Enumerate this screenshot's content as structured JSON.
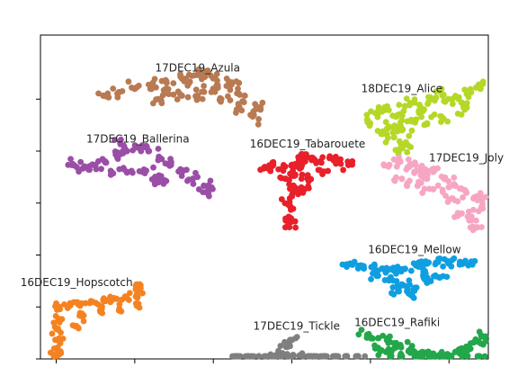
{
  "chart_data": {
    "type": "scatter",
    "title": "",
    "xlabel": "",
    "ylabel": "",
    "xlim": [
      -1,
      27.5
    ],
    "ylim": [
      0.0,
      9.35
    ],
    "grid": false,
    "legend": "none",
    "xticks": [
      0,
      5,
      10,
      15,
      20,
      25
    ],
    "yticks": [
      0,
      1.5,
      3,
      4.5,
      6,
      7.5
    ],
    "series": [
      {
        "name": "17DEC19_Azula",
        "color": "#b87a53",
        "label": {
          "x": 9,
          "y": 8.3
        },
        "points": [
          [
            3,
            7.6
          ],
          [
            4,
            7.7
          ],
          [
            5,
            7.8
          ],
          [
            6,
            7.9
          ],
          [
            7,
            8.0
          ],
          [
            8,
            8.1
          ],
          [
            9,
            8.2
          ],
          [
            10,
            8.1
          ],
          [
            11,
            7.9
          ],
          [
            12,
            7.6
          ],
          [
            13,
            7.2
          ],
          [
            6.5,
            7.5
          ],
          [
            8,
            7.6
          ],
          [
            9,
            7.6
          ],
          [
            10.5,
            7.5
          ],
          [
            11.5,
            7.2
          ],
          [
            12.5,
            7.0
          ],
          [
            7,
            7.8
          ],
          [
            8.5,
            8.0
          ],
          [
            10,
            7.8
          ],
          [
            9.5,
            8.3
          ],
          [
            11,
            8.0
          ]
        ],
        "spread": [
          0.55,
          0.18
        ]
      },
      {
        "name": "18DEC19_Alice",
        "color": "#b5d827",
        "label": {
          "x": 22,
          "y": 7.7
        },
        "points": [
          [
            19.8,
            6.9
          ],
          [
            20.5,
            7.1
          ],
          [
            21,
            7.2
          ],
          [
            21.6,
            7.0
          ],
          [
            22.2,
            7.3
          ],
          [
            22.8,
            7.4
          ],
          [
            23.4,
            7.2
          ],
          [
            24,
            7.5
          ],
          [
            24.6,
            7.6
          ],
          [
            25.2,
            7.5
          ],
          [
            25.8,
            7.4
          ],
          [
            26.4,
            7.7
          ],
          [
            27,
            7.8
          ],
          [
            21.2,
            6.7
          ],
          [
            22,
            6.6
          ],
          [
            22.6,
            6.9
          ],
          [
            23.6,
            6.8
          ],
          [
            20.8,
            6.5
          ],
          [
            21.5,
            6.4
          ],
          [
            22.3,
            6.2
          ],
          [
            21.8,
            6.0
          ],
          [
            24.5,
            7.0
          ],
          [
            26,
            7.2
          ]
        ],
        "spread": [
          0.6,
          0.2
        ]
      },
      {
        "name": "17DEC19_Ballerina",
        "color": "#9a4ea6",
        "label": {
          "x": 5.2,
          "y": 6.25
        },
        "points": [
          [
            1,
            5.6
          ],
          [
            1.7,
            5.5
          ],
          [
            2.4,
            5.6
          ],
          [
            3.1,
            5.7
          ],
          [
            3.8,
            5.9
          ],
          [
            4.5,
            6.0
          ],
          [
            5.2,
            6.1
          ],
          [
            5.9,
            6.0
          ],
          [
            6.6,
            5.8
          ],
          [
            7.3,
            5.6
          ],
          [
            8,
            5.4
          ],
          [
            8.7,
            5.2
          ],
          [
            9.4,
            5.0
          ],
          [
            9.6,
            4.8
          ],
          [
            3.5,
            5.4
          ],
          [
            4.5,
            5.4
          ],
          [
            5.5,
            5.4
          ],
          [
            6.5,
            5.2
          ],
          [
            4.1,
            6.2
          ],
          [
            6.5,
            5.1
          ]
        ],
        "spread": [
          0.55,
          0.16
        ]
      },
      {
        "name": "16DEC19_Tabarouete",
        "color": "#e8202a",
        "label": {
          "x": 16,
          "y": 6.1
        },
        "points": [
          [
            13.2,
            5.5
          ],
          [
            13.8,
            5.6
          ],
          [
            14.4,
            5.5
          ],
          [
            15,
            5.6
          ],
          [
            15.6,
            5.8
          ],
          [
            16.2,
            5.8
          ],
          [
            16.8,
            5.7
          ],
          [
            17.4,
            5.8
          ],
          [
            18,
            5.7
          ],
          [
            18.6,
            5.6
          ],
          [
            15.2,
            5.3
          ],
          [
            15.1,
            5.0
          ],
          [
            15,
            4.7
          ],
          [
            14.9,
            4.4
          ],
          [
            14.8,
            4.1
          ],
          [
            14.8,
            3.9
          ],
          [
            16,
            5.2
          ],
          [
            15.8,
            4.9
          ],
          [
            17,
            5.4
          ],
          [
            14.6,
            5.2
          ],
          [
            15.5,
            5.5
          ]
        ],
        "spread": [
          0.55,
          0.15
        ]
      },
      {
        "name": "17DEC19_Joly",
        "color": "#f6a6c3",
        "label": {
          "x": 26.1,
          "y": 5.7
        },
        "points": [
          [
            21.2,
            5.6
          ],
          [
            21.9,
            5.7
          ],
          [
            22.6,
            5.6
          ],
          [
            23.3,
            5.5
          ],
          [
            24,
            5.4
          ],
          [
            24.7,
            5.2
          ],
          [
            25.4,
            5.0
          ],
          [
            26.1,
            4.8
          ],
          [
            26.8,
            4.6
          ],
          [
            27.1,
            4.4
          ],
          [
            22,
            5.2
          ],
          [
            23,
            5.0
          ],
          [
            24,
            4.9
          ],
          [
            25,
            4.6
          ],
          [
            25.8,
            4.2
          ],
          [
            26.4,
            4.0
          ],
          [
            26.8,
            3.8
          ],
          [
            27,
            4.7
          ],
          [
            22.8,
            5.4
          ],
          [
            23.6,
            5.2
          ]
        ],
        "spread": [
          0.55,
          0.16
        ]
      },
      {
        "name": "16DEC19_Mellow",
        "color": "#0f9fe0",
        "label": {
          "x": 22.8,
          "y": 3.05
        },
        "points": [
          [
            18.7,
            2.75
          ],
          [
            19.4,
            2.7
          ],
          [
            20.1,
            2.65
          ],
          [
            20.8,
            2.6
          ],
          [
            21.5,
            2.55
          ],
          [
            22.2,
            2.6
          ],
          [
            22.9,
            2.7
          ],
          [
            23.6,
            2.75
          ],
          [
            24.3,
            2.8
          ],
          [
            25,
            2.75
          ],
          [
            25.7,
            2.8
          ],
          [
            26.4,
            2.75
          ],
          [
            21.2,
            2.3
          ],
          [
            22,
            2.15
          ],
          [
            22.8,
            2.05
          ],
          [
            23.6,
            2.2
          ],
          [
            24.4,
            2.35
          ],
          [
            21.8,
            1.95
          ],
          [
            22.6,
            1.85
          ],
          [
            23.4,
            2.45
          ],
          [
            20.4,
            2.4
          ]
        ],
        "spread": [
          0.55,
          0.14
        ]
      },
      {
        "name": "16DEC19_Hopscotch",
        "color": "#f58220",
        "label": {
          "x": 1.3,
          "y": 2.1
        },
        "points": [
          [
            0.2,
            1.5
          ],
          [
            0.9,
            1.55
          ],
          [
            1.6,
            1.6
          ],
          [
            2.3,
            1.65
          ],
          [
            3,
            1.7
          ],
          [
            3.7,
            1.75
          ],
          [
            4.4,
            1.8
          ],
          [
            5.1,
            1.8
          ],
          [
            5.2,
            1.55
          ],
          [
            5.3,
            2.0
          ],
          [
            5.3,
            2.15
          ],
          [
            0.2,
            1.15
          ],
          [
            0.1,
            0.85
          ],
          [
            0.05,
            0.55
          ],
          [
            0.0,
            0.3
          ],
          [
            -0.05,
            0.1
          ],
          [
            1.5,
            1.25
          ],
          [
            2.8,
            1.4
          ],
          [
            4,
            1.4
          ],
          [
            1.2,
            0.95
          ]
        ],
        "spread": [
          0.4,
          0.12
        ]
      },
      {
        "name": "17DEC19_Tickle",
        "color": "#7f7f7f",
        "label": {
          "x": 15.3,
          "y": 0.85
        },
        "points": [
          [
            11.5,
            -0.3
          ],
          [
            12.2,
            -0.35
          ],
          [
            12.9,
            -0.3
          ],
          [
            13.6,
            -0.2
          ],
          [
            14.3,
            -0.15
          ],
          [
            15,
            -0.1
          ],
          [
            15.7,
            -0.2
          ],
          [
            16.4,
            -0.3
          ],
          [
            17.1,
            -0.35
          ],
          [
            17.8,
            -0.4
          ],
          [
            18.5,
            -0.5
          ],
          [
            19.2,
            -0.55
          ],
          [
            14.2,
            0.15
          ],
          [
            14.7,
            0.35
          ],
          [
            15.0,
            0.55
          ],
          [
            13.8,
            0.05
          ],
          [
            15.5,
            0.1
          ],
          [
            16.2,
            -0.05
          ]
        ],
        "spread": [
          0.5,
          0.1
        ]
      },
      {
        "name": "16DEC19_Rafiki",
        "color": "#22a74a",
        "label": {
          "x": 21.7,
          "y": 0.95
        },
        "points": [
          [
            19.8,
            0.7
          ],
          [
            20.5,
            0.6
          ],
          [
            21.2,
            0.5
          ],
          [
            21.9,
            0.4
          ],
          [
            22.6,
            0.3
          ],
          [
            23.3,
            0.2
          ],
          [
            24,
            0.15
          ],
          [
            24.7,
            0.1
          ],
          [
            25.4,
            0.2
          ],
          [
            26.1,
            0.35
          ],
          [
            26.8,
            0.5
          ],
          [
            27.1,
            0.65
          ],
          [
            21,
            0.2
          ],
          [
            22,
            0.05
          ],
          [
            23,
            -0.05
          ],
          [
            24,
            -0.1
          ],
          [
            25,
            0.0
          ],
          [
            26,
            0.1
          ],
          [
            26.9,
            0.0
          ],
          [
            20.5,
            0.3
          ]
        ],
        "spread": [
          0.55,
          0.14
        ]
      }
    ]
  }
}
